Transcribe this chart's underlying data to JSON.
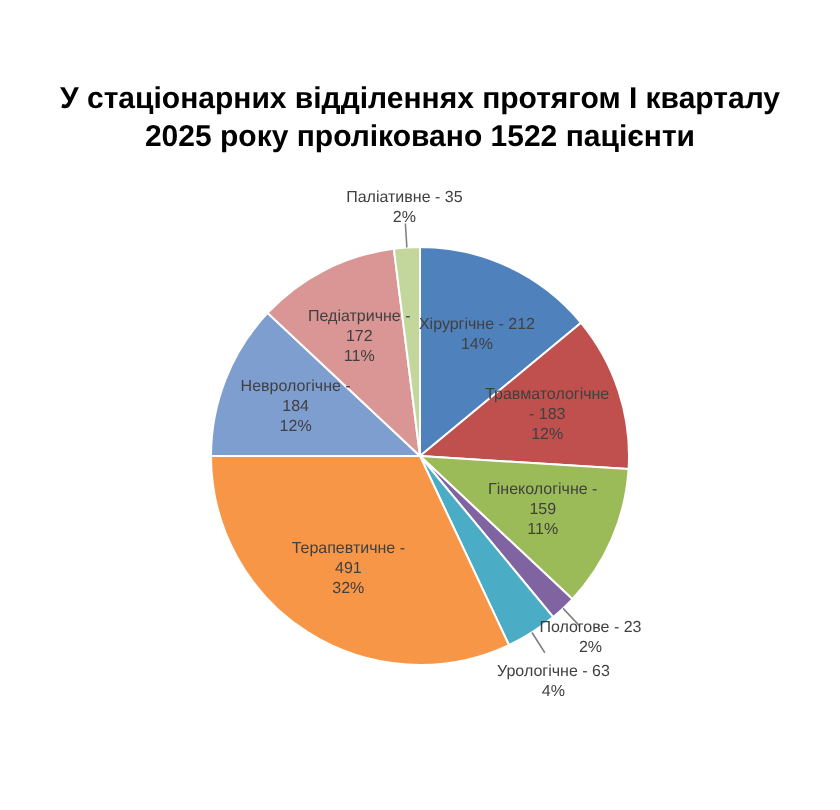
{
  "chart_data": {
    "type": "pie",
    "title": "У стаціонарних відділеннях протягом І кварталу 2025 року проліковано 1522 пацієнти",
    "categories": [
      "Хірургічне - 212",
      "Травматологічне - 183",
      "Гінекологічне - 159",
      "Пологове - 23",
      "Урологічне - 63",
      "Терапевтичне - 491",
      "Неврологічне - 184",
      "Педіатричне - 172",
      "Паліативне - 35"
    ],
    "values": [
      14,
      12,
      11,
      2,
      4,
      32,
      12,
      11,
      2
    ],
    "colors": [
      "#4f81bd",
      "#c0504d",
      "#9bbb59",
      "#8064a2",
      "#4bacc6",
      "#f79646",
      "#7f9ed0",
      "#d99694",
      "#c3d69b"
    ],
    "value_labels": [
      "14%",
      "12%",
      "11%",
      "2%",
      "4%",
      "32%",
      "12%",
      "11%",
      "2%"
    ],
    "legend": false
  }
}
